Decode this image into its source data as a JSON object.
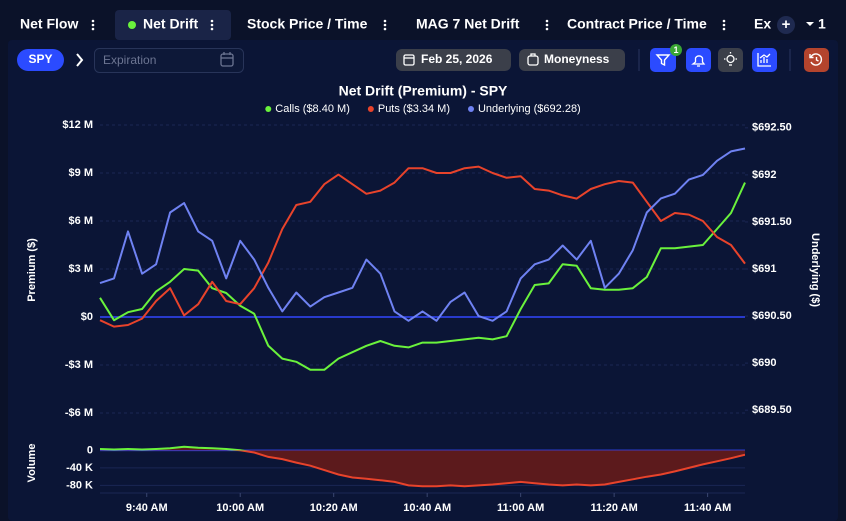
{
  "tabs": [
    "Net Flow",
    "Net Drift",
    "Stock Price / Time",
    "MAG 7 Net Drift",
    "Contract Price / Time",
    "Ex"
  ],
  "active_tab": 1,
  "tab_count": "1",
  "toolbar": {
    "symbol": "SPY",
    "expiration_placeholder": "Expiration",
    "date": "Feb 25, 2026",
    "moneyness": "Moneyness",
    "filter_badge": "1"
  },
  "chart_data": [
    {
      "type": "line",
      "title": "Net Drift (Premium) - SPY",
      "ylabel": "Premium ($)",
      "y2label": "Underlying ($)",
      "x": [
        "9:30 AM",
        "9:33 AM",
        "9:36 AM",
        "9:39 AM",
        "9:42 AM",
        "9:45 AM",
        "9:48 AM",
        "9:51 AM",
        "9:54 AM",
        "9:57 AM",
        "10:00 AM",
        "10:03 AM",
        "10:06 AM",
        "10:09 AM",
        "10:12 AM",
        "10:15 AM",
        "10:18 AM",
        "10:21 AM",
        "10:24 AM",
        "10:27 AM",
        "10:30 AM",
        "10:33 AM",
        "10:36 AM",
        "10:39 AM",
        "10:42 AM",
        "10:45 AM",
        "10:48 AM",
        "10:51 AM",
        "10:54 AM",
        "10:57 AM",
        "11:00 AM",
        "11:03 AM",
        "11:06 AM",
        "11:09 AM",
        "11:12 AM",
        "11:15 AM",
        "11:18 AM",
        "11:21 AM",
        "11:24 AM",
        "11:27 AM",
        "11:30 AM",
        "11:33 AM",
        "11:36 AM",
        "11:39 AM",
        "11:42 AM",
        "11:45 AM",
        "11:48 AM"
      ],
      "xlim": [
        "9:30 AM",
        "11:48 AM"
      ],
      "ylim": [
        -7,
        13
      ],
      "yticks": [
        {
          "value": 12,
          "label": "$12 M"
        },
        {
          "value": 9,
          "label": "$9 M"
        },
        {
          "value": 6,
          "label": "$6 M"
        },
        {
          "value": 3,
          "label": "$3 M"
        },
        {
          "value": 0,
          "label": "$0"
        },
        {
          "value": -3,
          "label": "-$3 M"
        },
        {
          "value": -6,
          "label": "-$6 M"
        }
      ],
      "y2lim": [
        689.3,
        692.7
      ],
      "y2ticks": [
        {
          "value": 692.5,
          "label": "$692.50"
        },
        {
          "value": 692,
          "label": "$692"
        },
        {
          "value": 691.5,
          "label": "$691.50"
        },
        {
          "value": 691,
          "label": "$691"
        },
        {
          "value": 690.5,
          "label": "$690.50"
        },
        {
          "value": 690,
          "label": "$690"
        },
        {
          "value": 689.5,
          "label": "$689.50"
        }
      ],
      "grid": true,
      "zero_line_color": "#3347ff",
      "series": [
        {
          "name": "Calls ($8.40 M)",
          "color": "#6af23c",
          "values": [
            1.2,
            -0.2,
            0.3,
            0.5,
            1.6,
            2.2,
            3.0,
            2.9,
            1.8,
            1.5,
            0.7,
            0.2,
            -1.8,
            -2.6,
            -2.8,
            -3.3,
            -3.3,
            -2.6,
            -2.2,
            -1.8,
            -1.5,
            -1.8,
            -1.9,
            -1.6,
            -1.6,
            -1.5,
            -1.4,
            -1.3,
            -1.4,
            -1.2,
            0.5,
            2.0,
            2.1,
            3.3,
            3.2,
            1.8,
            1.7,
            1.7,
            1.8,
            2.5,
            4.3,
            4.3,
            4.4,
            4.5,
            5.5,
            6.5,
            8.4
          ]
        },
        {
          "name": "Puts ($3.34 M)",
          "color": "#e8432b",
          "values": [
            -0.2,
            -0.6,
            -0.5,
            -0.1,
            1.0,
            1.8,
            0.1,
            0.8,
            2.2,
            1.0,
            0.8,
            1.8,
            3.4,
            5.5,
            7.0,
            7.2,
            8.3,
            8.9,
            8.3,
            7.7,
            7.9,
            8.4,
            9.3,
            9.3,
            9.0,
            9.0,
            9.3,
            9.4,
            9.0,
            8.7,
            8.8,
            8.0,
            7.9,
            7.6,
            7.4,
            8.0,
            8.3,
            8.5,
            8.4,
            7.2,
            6.0,
            6.5,
            6.4,
            6.0,
            5.0,
            4.5,
            3.34
          ]
        },
        {
          "name": "Underlying ($692.28)",
          "color": "#6f82f2",
          "axis": "y2",
          "values": [
            690.85,
            690.9,
            691.4,
            690.95,
            691.05,
            691.6,
            691.7,
            691.4,
            691.3,
            690.9,
            691.3,
            691.1,
            690.8,
            690.55,
            690.75,
            690.6,
            690.7,
            690.75,
            690.8,
            691.1,
            690.95,
            690.55,
            690.45,
            690.55,
            690.45,
            690.65,
            690.75,
            690.5,
            690.45,
            690.55,
            690.9,
            691.05,
            691.1,
            691.25,
            691.1,
            691.3,
            690.8,
            690.95,
            691.2,
            691.6,
            691.75,
            691.8,
            691.95,
            692.0,
            692.15,
            692.25,
            692.28
          ]
        }
      ]
    },
    {
      "type": "area",
      "ylabel": "Volume",
      "x": [
        "9:30 AM",
        "9:33 AM",
        "9:36 AM",
        "9:39 AM",
        "9:42 AM",
        "9:45 AM",
        "9:48 AM",
        "9:51 AM",
        "9:54 AM",
        "9:57 AM",
        "10:00 AM",
        "10:03 AM",
        "10:06 AM",
        "10:09 AM",
        "10:12 AM",
        "10:15 AM",
        "10:18 AM",
        "10:21 AM",
        "10:24 AM",
        "10:27 AM",
        "10:30 AM",
        "10:33 AM",
        "10:36 AM",
        "10:39 AM",
        "10:42 AM",
        "10:45 AM",
        "10:48 AM",
        "10:51 AM",
        "10:54 AM",
        "10:57 AM",
        "11:00 AM",
        "11:03 AM",
        "11:06 AM",
        "11:09 AM",
        "11:12 AM",
        "11:15 AM",
        "11:18 AM",
        "11:21 AM",
        "11:24 AM",
        "11:27 AM",
        "11:30 AM",
        "11:33 AM",
        "11:36 AM",
        "11:39 AM",
        "11:42 AM",
        "11:45 AM",
        "11:48 AM"
      ],
      "xlim": [
        "9:30 AM",
        "11:48 AM"
      ],
      "xticks": [
        "9:40 AM",
        "10:00 AM",
        "10:20 AM",
        "10:40 AM",
        "11:00 AM",
        "11:20 AM",
        "11:40 AM"
      ],
      "ylim": [
        -95000,
        35000
      ],
      "yticks": [
        0,
        {
          "value": -40000,
          "label": "-40 K"
        },
        {
          "value": -80000,
          "label": "-80 K"
        }
      ],
      "color": "#e8432b",
      "positive_color": "#6af23c",
      "fill": "#5c1a1c",
      "values": [
        3000,
        2000,
        3000,
        2000,
        3000,
        5000,
        8000,
        6000,
        5000,
        3000,
        0,
        -5000,
        -15000,
        -20000,
        -28000,
        -35000,
        -45000,
        -55000,
        -62000,
        -65000,
        -68000,
        -72000,
        -80000,
        -82000,
        -82000,
        -80000,
        -82000,
        -80000,
        -78000,
        -75000,
        -72000,
        -75000,
        -78000,
        -80000,
        -78000,
        -80000,
        -78000,
        -72000,
        -66000,
        -60000,
        -55000,
        -48000,
        -40000,
        -32000,
        -25000,
        -18000,
        -10000
      ]
    }
  ]
}
